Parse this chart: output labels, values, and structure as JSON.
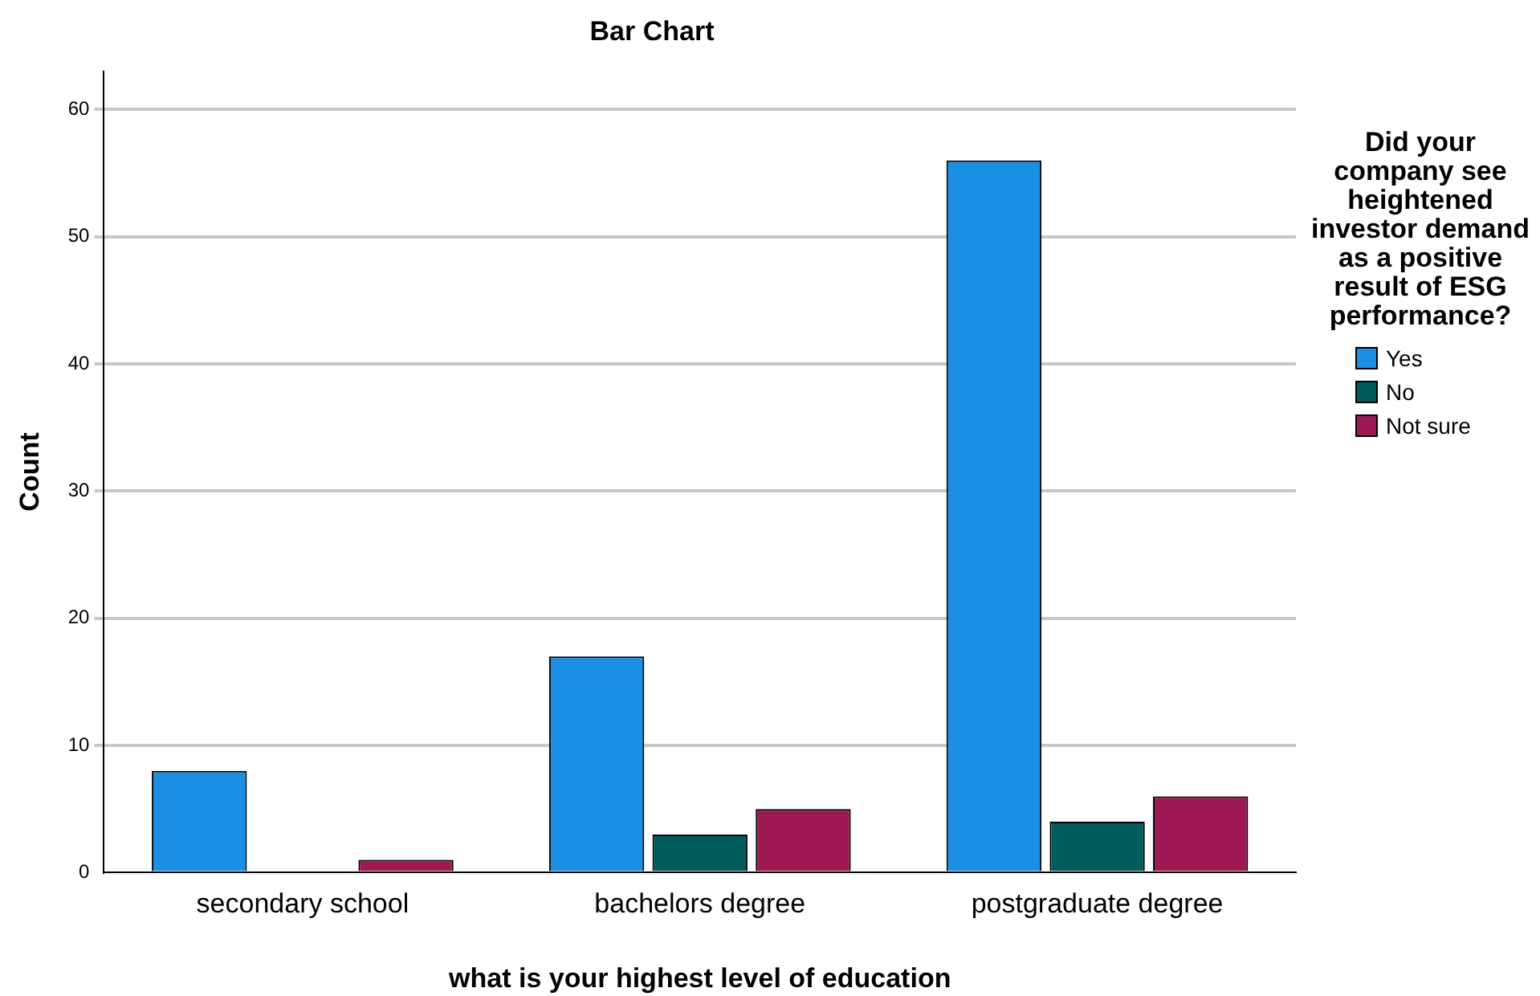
{
  "chart_data": {
    "type": "bar",
    "title": "Bar Chart",
    "xlabel": "what is your highest level of education",
    "ylabel": "Count",
    "legend_title": "Did your company see heightened investor demand as a positive result of ESG performance?",
    "categories": [
      "secondary school",
      "bachelors degree",
      "postgraduate degree"
    ],
    "series": [
      {
        "name": "Yes",
        "color": "#1a8fe3",
        "values": [
          8,
          17,
          56
        ]
      },
      {
        "name": "No",
        "color": "#005d5d",
        "values": [
          0,
          3,
          4
        ]
      },
      {
        "name": "Not sure",
        "color": "#9e1853",
        "values": [
          1,
          5,
          6
        ]
      }
    ],
    "ylim": [
      0,
      63
    ],
    "yticks": [
      0,
      10,
      20,
      30,
      40,
      50,
      60
    ],
    "grid": "y",
    "legend": "right"
  }
}
